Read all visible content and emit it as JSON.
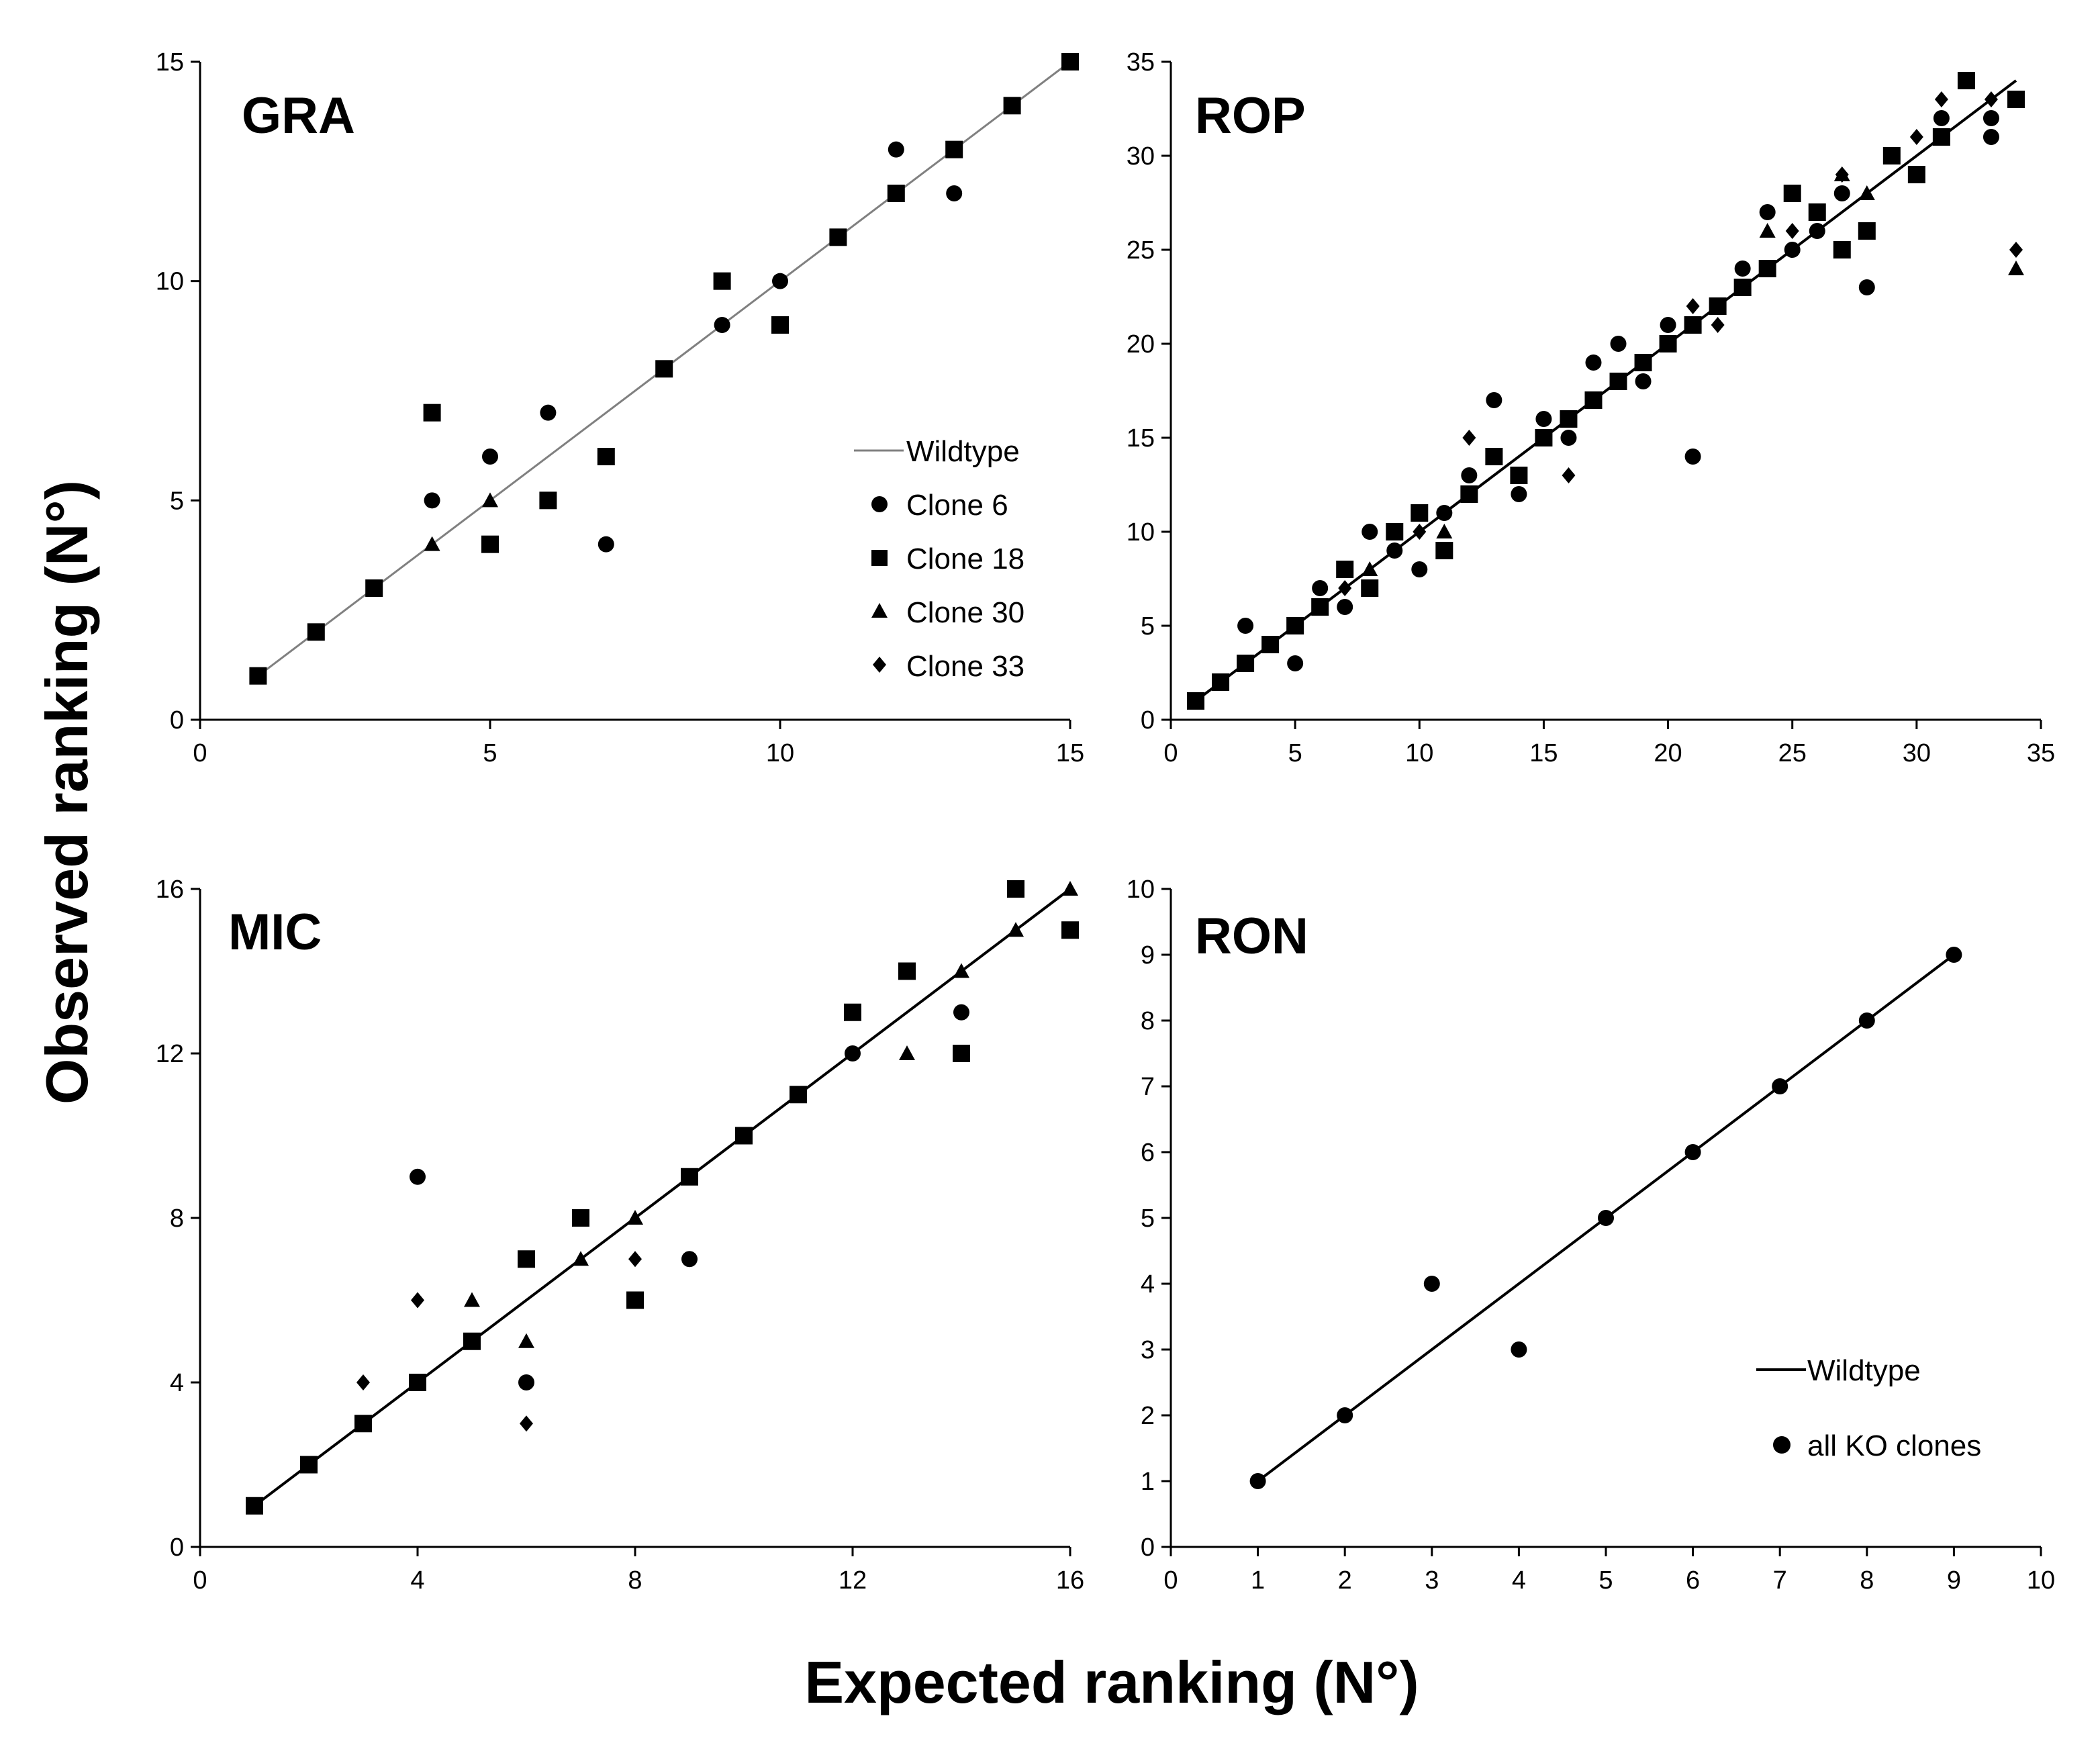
{
  "figure": {
    "xlabel": "Expected ranking (N°)",
    "ylabel": "Observed ranking (N°)"
  },
  "chart_data": [
    {
      "type": "scatter",
      "title": "GRA",
      "xlim": [
        0,
        15
      ],
      "ylim": [
        0,
        15
      ],
      "xticks": [
        0,
        5,
        10,
        15
      ],
      "yticks": [
        0,
        5,
        10,
        15
      ],
      "xtick_labels": [
        "0",
        "5",
        "10",
        "15"
      ],
      "ytick_labels": [
        "0",
        "5",
        "10",
        "15"
      ],
      "legend": {
        "placement": "right",
        "entries": [
          "Wildtype",
          "Clone 6",
          "Clone 18",
          "Clone 30",
          "Clone 33"
        ]
      },
      "line": {
        "name": "Wildtype",
        "x": [
          1,
          15
        ],
        "y": [
          1,
          15
        ],
        "color": "#808080"
      },
      "series": [
        {
          "name": "Clone 6",
          "marker": "circle",
          "points": [
            [
              4,
              5
            ],
            [
              5,
              6
            ],
            [
              6,
              7
            ],
            [
              7,
              4
            ],
            [
              9,
              9
            ],
            [
              10,
              10
            ],
            [
              12,
              13
            ],
            [
              13,
              12
            ]
          ]
        },
        {
          "name": "Clone 18",
          "marker": "square",
          "points": [
            [
              1,
              1
            ],
            [
              2,
              2
            ],
            [
              3,
              3
            ],
            [
              4,
              7
            ],
            [
              5,
              4
            ],
            [
              6,
              5
            ],
            [
              7,
              6
            ],
            [
              8,
              8
            ],
            [
              9,
              10
            ],
            [
              10,
              9
            ],
            [
              11,
              11
            ],
            [
              12,
              12
            ],
            [
              13,
              13
            ],
            [
              14,
              14
            ],
            [
              15,
              15
            ]
          ]
        },
        {
          "name": "Clone 30",
          "marker": "triangle",
          "points": [
            [
              4,
              4
            ],
            [
              5,
              5
            ]
          ]
        },
        {
          "name": "Clone 33",
          "marker": "diamond",
          "points": []
        }
      ]
    },
    {
      "type": "scatter",
      "title": "ROP",
      "xlim": [
        0,
        35
      ],
      "ylim": [
        0,
        35
      ],
      "xticks": [
        0,
        5,
        10,
        15,
        20,
        25,
        30,
        35
      ],
      "yticks": [
        0,
        5,
        10,
        15,
        20,
        25,
        30,
        35
      ],
      "xtick_labels": [
        "0",
        "5",
        "10",
        "15",
        "20",
        "25",
        "30",
        "35"
      ],
      "ytick_labels": [
        "0",
        "5",
        "10",
        "15",
        "20",
        "25",
        "30",
        "35"
      ],
      "line": {
        "name": "Wildtype",
        "x": [
          1,
          34
        ],
        "y": [
          1,
          34
        ],
        "color": "#000000"
      },
      "series": [
        {
          "name": "Clone 6",
          "marker": "circle",
          "points": [
            [
              3,
              5
            ],
            [
              5,
              3
            ],
            [
              6,
              7
            ],
            [
              7,
              6
            ],
            [
              8,
              10
            ],
            [
              9,
              9
            ],
            [
              10,
              8
            ],
            [
              11,
              11
            ],
            [
              12,
              13
            ],
            [
              13,
              17
            ],
            [
              14,
              12
            ],
            [
              15,
              16
            ],
            [
              16,
              15
            ],
            [
              17,
              19
            ],
            [
              18,
              20
            ],
            [
              19,
              18
            ],
            [
              20,
              21
            ],
            [
              21,
              14
            ],
            [
              22,
              22
            ],
            [
              23,
              24
            ],
            [
              24,
              27
            ],
            [
              25,
              25
            ],
            [
              26,
              26
            ],
            [
              27,
              28
            ],
            [
              28,
              23
            ],
            [
              31,
              32
            ],
            [
              33,
              31
            ],
            [
              33,
              32
            ]
          ]
        },
        {
          "name": "Clone 18",
          "marker": "square",
          "points": [
            [
              1,
              1
            ],
            [
              2,
              2
            ],
            [
              3,
              3
            ],
            [
              4,
              4
            ],
            [
              5,
              5
            ],
            [
              6,
              6
            ],
            [
              7,
              8
            ],
            [
              8,
              7
            ],
            [
              9,
              10
            ],
            [
              10,
              11
            ],
            [
              11,
              9
            ],
            [
              12,
              12
            ],
            [
              13,
              14
            ],
            [
              14,
              13
            ],
            [
              15,
              15
            ],
            [
              16,
              16
            ],
            [
              17,
              17
            ],
            [
              18,
              18
            ],
            [
              19,
              19
            ],
            [
              20,
              20
            ],
            [
              21,
              21
            ],
            [
              22,
              22
            ],
            [
              23,
              23
            ],
            [
              24,
              24
            ],
            [
              25,
              28
            ],
            [
              26,
              27
            ],
            [
              27,
              25
            ],
            [
              28,
              26
            ],
            [
              29,
              30
            ],
            [
              30,
              29
            ],
            [
              31,
              31
            ],
            [
              32,
              34
            ],
            [
              34,
              33
            ]
          ]
        },
        {
          "name": "Clone 30",
          "marker": "triangle",
          "points": [
            [
              8,
              8
            ],
            [
              11,
              10
            ],
            [
              24,
              26
            ],
            [
              27,
              29
            ],
            [
              28,
              28
            ],
            [
              34,
              24
            ]
          ]
        },
        {
          "name": "Clone 33",
          "marker": "diamond",
          "points": [
            [
              7,
              7
            ],
            [
              10,
              10
            ],
            [
              12,
              15
            ],
            [
              16,
              13
            ],
            [
              21,
              22
            ],
            [
              22,
              21
            ],
            [
              25,
              26
            ],
            [
              27,
              29
            ],
            [
              30,
              31
            ],
            [
              31,
              33
            ],
            [
              33,
              33
            ],
            [
              34,
              25
            ]
          ]
        }
      ]
    },
    {
      "type": "scatter",
      "title": "MIC",
      "xlim": [
        0,
        16
      ],
      "ylim": [
        0,
        16
      ],
      "xticks": [
        0,
        4,
        8,
        12,
        16
      ],
      "yticks": [
        0,
        4,
        8,
        12,
        16
      ],
      "xtick_labels": [
        "0",
        "4",
        "8",
        "12",
        "16"
      ],
      "ytick_labels": [
        "0",
        "4",
        "8",
        "12",
        "16"
      ],
      "line": {
        "name": "Wildtype",
        "x": [
          1,
          16
        ],
        "y": [
          1,
          16
        ],
        "color": "#000000"
      },
      "series": [
        {
          "name": "Clone 6",
          "marker": "circle",
          "points": [
            [
              4,
              9
            ],
            [
              6,
              4
            ],
            [
              9,
              7
            ],
            [
              12,
              12
            ],
            [
              14,
              13
            ]
          ]
        },
        {
          "name": "Clone 18",
          "marker": "square",
          "points": [
            [
              1,
              1
            ],
            [
              2,
              2
            ],
            [
              3,
              3
            ],
            [
              4,
              4
            ],
            [
              5,
              5
            ],
            [
              6,
              7
            ],
            [
              7,
              8
            ],
            [
              8,
              6
            ],
            [
              9,
              9
            ],
            [
              10,
              10
            ],
            [
              11,
              11
            ],
            [
              12,
              13
            ],
            [
              13,
              14
            ],
            [
              14,
              12
            ],
            [
              15,
              16
            ],
            [
              16,
              15
            ]
          ]
        },
        {
          "name": "Clone 30",
          "marker": "triangle",
          "points": [
            [
              5,
              6
            ],
            [
              6,
              5
            ],
            [
              7,
              7
            ],
            [
              8,
              8
            ],
            [
              13,
              12
            ],
            [
              14,
              14
            ],
            [
              15,
              15
            ],
            [
              16,
              16
            ]
          ]
        },
        {
          "name": "Clone 33",
          "marker": "diamond",
          "points": [
            [
              3,
              4
            ],
            [
              4,
              6
            ],
            [
              6,
              3
            ],
            [
              8,
              7
            ]
          ]
        }
      ]
    },
    {
      "type": "scatter",
      "title": "RON",
      "xlim": [
        0,
        10
      ],
      "ylim": [
        0,
        10
      ],
      "xticks": [
        0,
        1,
        2,
        3,
        4,
        5,
        6,
        7,
        8,
        9,
        10
      ],
      "yticks": [
        0,
        1,
        2,
        3,
        4,
        5,
        6,
        7,
        8,
        9,
        10
      ],
      "xtick_labels": [
        "0",
        "1",
        "2",
        "3",
        "4",
        "5",
        "6",
        "7",
        "8",
        "9",
        "10"
      ],
      "ytick_labels": [
        "0",
        "1",
        "2",
        "3",
        "4",
        "5",
        "6",
        "7",
        "8",
        "9",
        "10"
      ],
      "legend": {
        "placement": "bottom-right",
        "entries": [
          "Wildtype",
          "all KO clones"
        ]
      },
      "line": {
        "name": "Wildtype",
        "x": [
          1,
          9
        ],
        "y": [
          1,
          9
        ],
        "color": "#000000"
      },
      "series": [
        {
          "name": "all KO clones",
          "marker": "circle",
          "points": [
            [
              1,
              1
            ],
            [
              2,
              2
            ],
            [
              3,
              4
            ],
            [
              4,
              3
            ],
            [
              5,
              5
            ],
            [
              6,
              6
            ],
            [
              7,
              7
            ],
            [
              8,
              8
            ],
            [
              9,
              9
            ]
          ]
        }
      ]
    }
  ]
}
